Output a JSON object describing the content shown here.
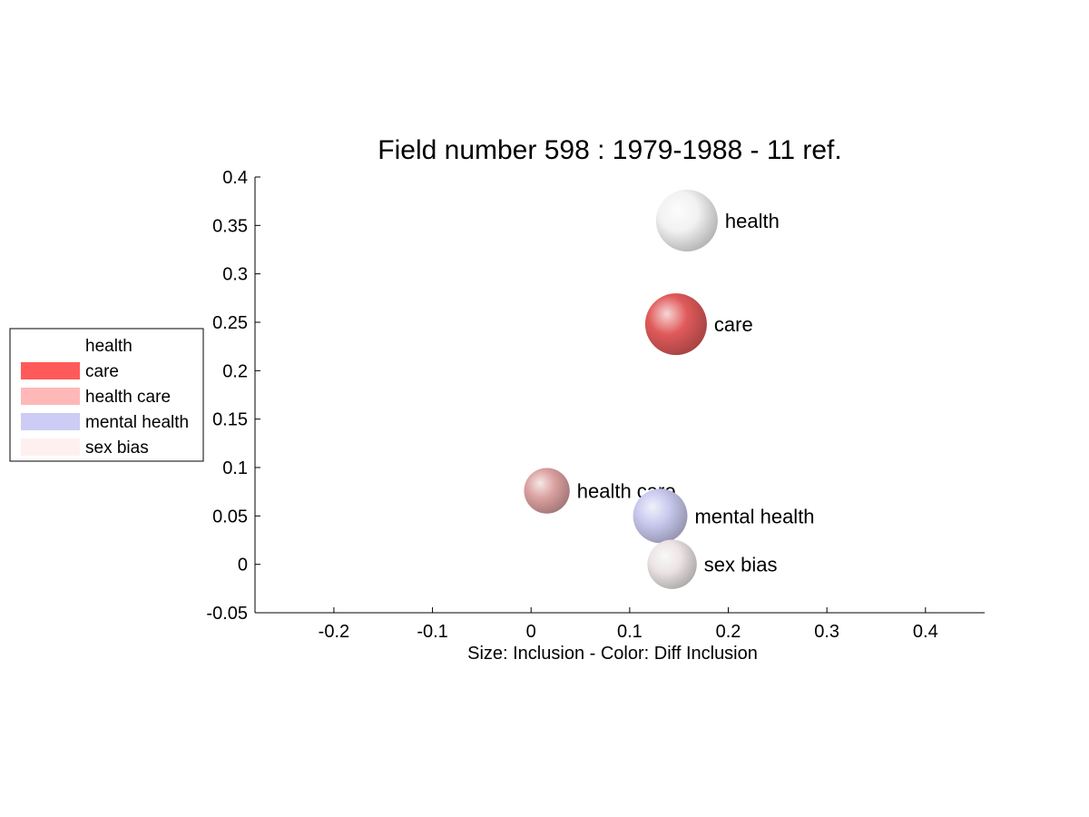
{
  "chart_data": {
    "type": "scatter",
    "title": "Field number 598 : 1979-1988  - 11 ref.",
    "xlabel": "Size: Inclusion - Color: Diff Inclusion",
    "ylabel": "",
    "xlim": [
      -0.28,
      0.46
    ],
    "ylim": [
      -0.05,
      0.4
    ],
    "xticks": [
      -0.2,
      -0.1,
      0,
      0.1,
      0.2,
      0.3,
      0.4
    ],
    "xtick_labels": [
      "-0.2",
      "-0.1",
      "0",
      "0.1",
      "0.2",
      "0.3",
      "0.4"
    ],
    "yticks": [
      -0.05,
      0,
      0.05,
      0.1,
      0.15,
      0.2,
      0.25,
      0.3,
      0.35,
      0.4
    ],
    "ytick_labels": [
      "-0.05",
      "0",
      "0.05",
      "0.1",
      "0.15",
      "0.2",
      "0.25",
      "0.3",
      "0.35",
      "0.4"
    ],
    "grid": false,
    "legend_position": "left",
    "points": [
      {
        "label": "health",
        "x": 0.158,
        "y": 0.355,
        "size": 1.0,
        "color": "#f2f2f2"
      },
      {
        "label": "care",
        "x": 0.147,
        "y": 0.248,
        "size": 1.0,
        "color": "#e05a5a"
      },
      {
        "label": "health care",
        "x": 0.016,
        "y": 0.076,
        "size": 0.74,
        "color": "#dba0a0"
      },
      {
        "label": "mental health",
        "x": 0.131,
        "y": 0.05,
        "size": 0.88,
        "color": "#c8c8ee"
      },
      {
        "label": "sex bias",
        "x": 0.143,
        "y": 0.0,
        "size": 0.8,
        "color": "#ece4e4"
      }
    ],
    "legend": [
      {
        "label": "health",
        "color": "#ffffff"
      },
      {
        "label": "care",
        "color": "#ff5a5a"
      },
      {
        "label": "health care",
        "color": "#ffb8b8"
      },
      {
        "label": "mental health",
        "color": "#ccccf5"
      },
      {
        "label": "sex bias",
        "color": "#fff0f0"
      }
    ]
  }
}
